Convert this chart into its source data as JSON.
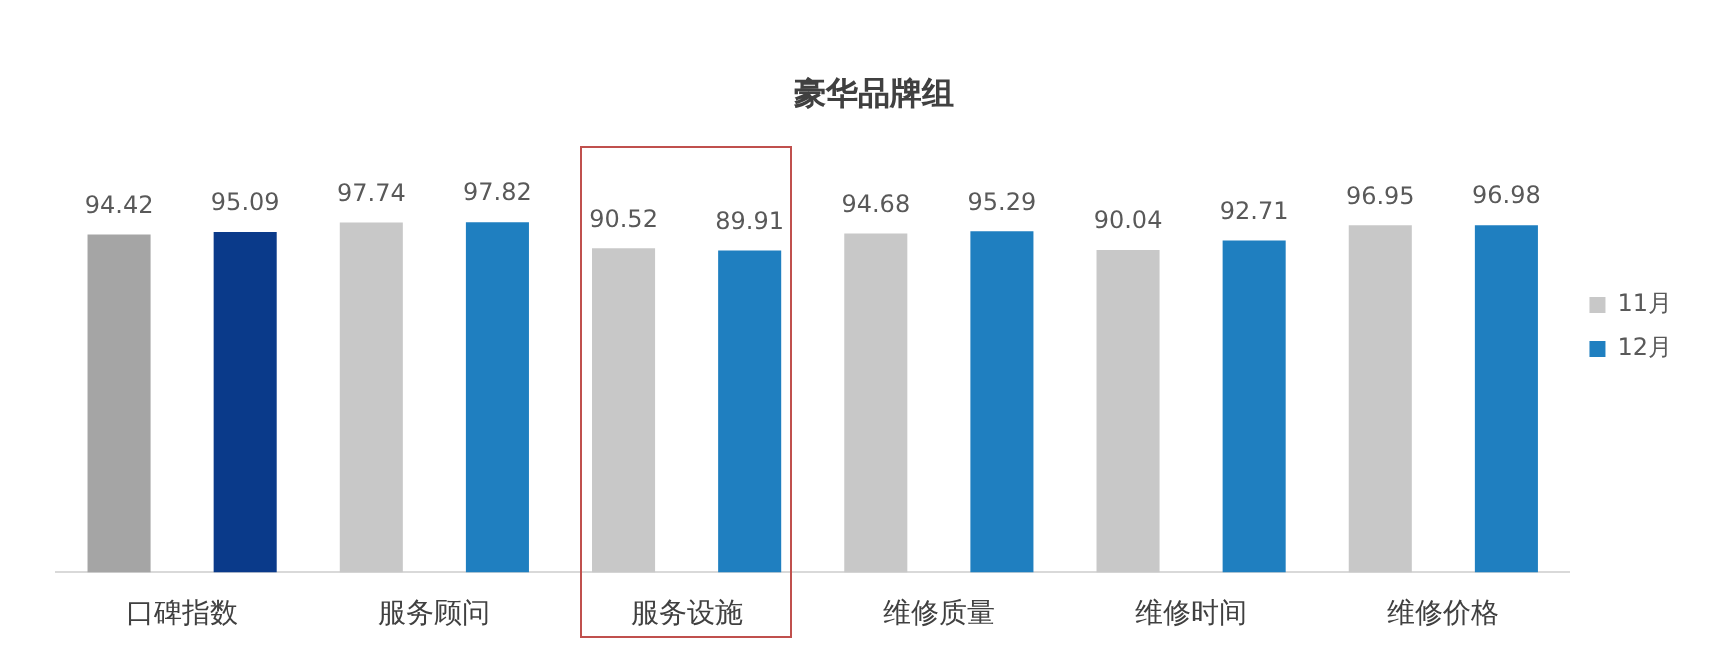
{
  "chart_data": {
    "type": "bar",
    "title": "豪华品牌组",
    "categories": [
      "口碑指数",
      "服务顾问",
      "服务设施",
      "维修质量",
      "维修时间",
      "维修价格"
    ],
    "series": [
      {
        "name": "11月",
        "color": "#c8c8c8",
        "colors": [
          "#a5a5a5",
          "#c8c8c8",
          "#c8c8c8",
          "#c8c8c8",
          "#c8c8c8",
          "#c8c8c8"
        ],
        "values": [
          94.42,
          97.74,
          90.52,
          94.68,
          90.04,
          96.95
        ]
      },
      {
        "name": "12月",
        "color": "#1f7fc0",
        "colors": [
          "#0a3a8a",
          "#1f7fc0",
          "#1f7fc0",
          "#1f7fc0",
          "#1f7fc0",
          "#1f7fc0"
        ],
        "values": [
          95.09,
          97.82,
          89.91,
          95.29,
          92.71,
          96.98
        ]
      }
    ],
    "tick_labels": "x",
    "grid": false,
    "legend": "right",
    "data_labels": true
  }
}
